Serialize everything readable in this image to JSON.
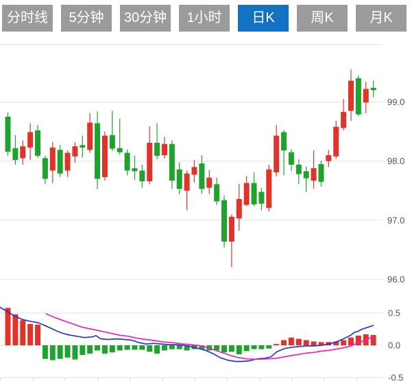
{
  "tabs": {
    "items": [
      {
        "label": "分时线",
        "active": false
      },
      {
        "label": "5分钟",
        "active": false
      },
      {
        "label": "30分钟",
        "active": false
      },
      {
        "label": "1小时",
        "active": false
      },
      {
        "label": "日K",
        "active": true
      },
      {
        "label": "周K",
        "active": false
      },
      {
        "label": "月K",
        "active": false
      }
    ]
  },
  "colors": {
    "up_candle": "#e0342b",
    "down_candle": "#1fa22e",
    "dif_line": "#2b35c9",
    "dea_line": "#ee1fc5",
    "tab_bg": "#9b9b9b",
    "tab_active_bg": "#1472c4",
    "grid": "#e2e2e2",
    "axis_text": "#555555"
  },
  "chart_data": {
    "type": "candlestick_with_macd",
    "panes": [
      "price_kline",
      "macd_indicator"
    ],
    "selected_timeframe": "日K",
    "price_axis": {
      "labels": [
        "99.0",
        "98.0",
        "97.0",
        "96.0"
      ],
      "values": [
        99.0,
        98.0,
        97.0,
        96.0
      ],
      "range": [
        95.9,
        100.0
      ]
    },
    "macd_axis": {
      "labels": [
        "0.5",
        "0.0",
        "-0.5"
      ],
      "values": [
        0.5,
        0.0,
        -0.5
      ],
      "range": [
        -0.5,
        0.5
      ]
    },
    "grid": "horizontal-only",
    "legend": "none",
    "candles": [
      {
        "o": 98.75,
        "h": 98.82,
        "l": 98.09,
        "c": 98.16
      },
      {
        "o": 98.22,
        "h": 98.44,
        "l": 97.94,
        "c": 98.02
      },
      {
        "o": 98.05,
        "h": 98.35,
        "l": 97.94,
        "c": 98.25
      },
      {
        "o": 98.23,
        "h": 98.64,
        "l": 98.02,
        "c": 98.49
      },
      {
        "o": 98.52,
        "h": 98.61,
        "l": 98.06,
        "c": 98.09
      },
      {
        "o": 98.05,
        "h": 98.09,
        "l": 97.61,
        "c": 97.7
      },
      {
        "o": 97.84,
        "h": 98.32,
        "l": 97.63,
        "c": 98.23
      },
      {
        "o": 98.19,
        "h": 98.27,
        "l": 97.73,
        "c": 97.79
      },
      {
        "o": 97.84,
        "h": 98.18,
        "l": 97.73,
        "c": 98.14
      },
      {
        "o": 98.08,
        "h": 98.32,
        "l": 97.97,
        "c": 98.25
      },
      {
        "o": 98.27,
        "h": 98.43,
        "l": 98.06,
        "c": 98.23
      },
      {
        "o": 98.19,
        "h": 98.81,
        "l": 98.14,
        "c": 98.65
      },
      {
        "o": 98.64,
        "h": 98.84,
        "l": 97.53,
        "c": 97.7
      },
      {
        "o": 97.73,
        "h": 98.5,
        "l": 97.67,
        "c": 98.43
      },
      {
        "o": 98.44,
        "h": 98.85,
        "l": 98.17,
        "c": 98.21
      },
      {
        "o": 98.22,
        "h": 98.72,
        "l": 98.11,
        "c": 98.15
      },
      {
        "o": 98.14,
        "h": 98.2,
        "l": 97.76,
        "c": 97.84
      },
      {
        "o": 97.88,
        "h": 98.09,
        "l": 97.68,
        "c": 97.83
      },
      {
        "o": 97.84,
        "h": 97.94,
        "l": 97.55,
        "c": 97.66
      },
      {
        "o": 97.66,
        "h": 98.59,
        "l": 97.61,
        "c": 98.31
      },
      {
        "o": 98.31,
        "h": 98.64,
        "l": 98.03,
        "c": 98.09
      },
      {
        "o": 98.1,
        "h": 98.41,
        "l": 98.04,
        "c": 98.29
      },
      {
        "o": 98.29,
        "h": 98.35,
        "l": 97.53,
        "c": 97.67
      },
      {
        "o": 97.86,
        "h": 97.98,
        "l": 97.44,
        "c": 97.53
      },
      {
        "o": 97.5,
        "h": 97.84,
        "l": 97.17,
        "c": 97.79
      },
      {
        "o": 97.77,
        "h": 98.02,
        "l": 97.64,
        "c": 97.9
      },
      {
        "o": 97.96,
        "h": 98.1,
        "l": 97.45,
        "c": 97.53
      },
      {
        "o": 97.55,
        "h": 97.85,
        "l": 97.45,
        "c": 97.72
      },
      {
        "o": 97.61,
        "h": 97.72,
        "l": 97.26,
        "c": 97.32
      },
      {
        "o": 97.34,
        "h": 97.42,
        "l": 96.54,
        "c": 96.64
      },
      {
        "o": 96.64,
        "h": 97.1,
        "l": 96.21,
        "c": 97.06
      },
      {
        "o": 97.03,
        "h": 97.61,
        "l": 96.82,
        "c": 97.36
      },
      {
        "o": 97.26,
        "h": 97.75,
        "l": 97.24,
        "c": 97.63
      },
      {
        "o": 97.63,
        "h": 97.81,
        "l": 97.24,
        "c": 97.27
      },
      {
        "o": 97.48,
        "h": 97.55,
        "l": 97.17,
        "c": 97.28
      },
      {
        "o": 97.21,
        "h": 97.94,
        "l": 97.15,
        "c": 97.86
      },
      {
        "o": 97.81,
        "h": 98.61,
        "l": 97.74,
        "c": 98.43
      },
      {
        "o": 98.49,
        "h": 98.53,
        "l": 97.76,
        "c": 98.18
      },
      {
        "o": 98.15,
        "h": 98.2,
        "l": 97.83,
        "c": 97.94
      },
      {
        "o": 97.94,
        "h": 98.03,
        "l": 97.61,
        "c": 97.78
      },
      {
        "o": 97.83,
        "h": 97.91,
        "l": 97.48,
        "c": 97.71
      },
      {
        "o": 97.67,
        "h": 98.18,
        "l": 97.53,
        "c": 97.88
      },
      {
        "o": 97.95,
        "h": 98.01,
        "l": 97.57,
        "c": 97.65
      },
      {
        "o": 98.0,
        "h": 98.19,
        "l": 97.9,
        "c": 98.1
      },
      {
        "o": 98.08,
        "h": 98.68,
        "l": 98.04,
        "c": 98.58
      },
      {
        "o": 98.56,
        "h": 99.05,
        "l": 98.52,
        "c": 98.83
      },
      {
        "o": 98.85,
        "h": 99.55,
        "l": 98.68,
        "c": 99.36
      },
      {
        "o": 99.4,
        "h": 99.45,
        "l": 98.76,
        "c": 98.79
      },
      {
        "o": 98.99,
        "h": 99.34,
        "l": 98.81,
        "c": 99.22
      },
      {
        "o": 99.24,
        "h": 99.36,
        "l": 99.08,
        "c": 99.2
      }
    ],
    "macd_histogram": [
      0.58,
      0.48,
      0.39,
      0.33,
      0.32,
      -0.21,
      -0.23,
      -0.21,
      -0.19,
      -0.22,
      -0.15,
      -0.13,
      -0.08,
      -0.13,
      -0.11,
      -0.08,
      -0.07,
      -0.07,
      -0.07,
      -0.1,
      -0.13,
      -0.08,
      -0.06,
      -0.06,
      -0.08,
      -0.06,
      -0.06,
      -0.08,
      -0.08,
      -0.11,
      -0.1,
      -0.14,
      -0.09,
      -0.06,
      -0.06,
      -0.05,
      0.02,
      0.08,
      0.12,
      0.1,
      0.08,
      0.06,
      0.05,
      0.05,
      0.06,
      0.08,
      0.12,
      0.15,
      0.17,
      0.16
    ],
    "dif_line_points": [
      [
        0,
        0.59
      ],
      [
        11,
        0.52
      ],
      [
        22,
        0.45
      ],
      [
        33,
        0.4
      ],
      [
        45,
        0.37
      ],
      [
        56,
        0.35
      ],
      [
        67,
        0.3
      ],
      [
        79,
        0.24
      ],
      [
        90,
        0.19
      ],
      [
        101,
        0.16
      ],
      [
        112,
        0.14
      ],
      [
        123,
        0.12
      ],
      [
        134,
        0.13
      ],
      [
        140,
        0.15
      ],
      [
        147,
        0.1
      ],
      [
        158,
        0.09
      ],
      [
        170,
        0.1
      ],
      [
        181,
        0.09
      ],
      [
        192,
        0.08
      ],
      [
        203,
        0.04
      ],
      [
        213,
        0.02
      ],
      [
        224,
        0.03
      ],
      [
        235,
        0.02
      ],
      [
        246,
        0.01
      ],
      [
        257,
        0.01
      ],
      [
        268,
        0.0
      ],
      [
        279,
        -0.02
      ],
      [
        290,
        -0.05
      ],
      [
        300,
        -0.08
      ],
      [
        311,
        -0.13
      ],
      [
        321,
        -0.19
      ],
      [
        332,
        -0.23
      ],
      [
        343,
        -0.25
      ],
      [
        354,
        -0.25
      ],
      [
        364,
        -0.24
      ],
      [
        375,
        -0.21
      ],
      [
        386,
        -0.2
      ],
      [
        395,
        -0.18
      ],
      [
        404,
        -0.1
      ],
      [
        415,
        -0.05
      ],
      [
        426,
        -0.03
      ],
      [
        436,
        -0.02
      ],
      [
        447,
        -0.01
      ],
      [
        458,
        -0.01
      ],
      [
        469,
        0.0
      ],
      [
        480,
        0.02
      ],
      [
        490,
        0.05
      ],
      [
        501,
        0.1
      ],
      [
        512,
        0.16
      ],
      [
        517,
        0.2
      ],
      [
        523,
        0.22
      ],
      [
        528,
        0.25
      ],
      [
        534,
        0.27
      ],
      [
        540,
        0.29
      ],
      [
        545,
        0.31
      ]
    ],
    "dea_line_points": [
      [
        67,
        0.49
      ],
      [
        80,
        0.43
      ],
      [
        93,
        0.38
      ],
      [
        107,
        0.33
      ],
      [
        120,
        0.28
      ],
      [
        134,
        0.25
      ],
      [
        147,
        0.22
      ],
      [
        160,
        0.19
      ],
      [
        173,
        0.16
      ],
      [
        187,
        0.14
      ],
      [
        200,
        0.11
      ],
      [
        213,
        0.09
      ],
      [
        227,
        0.07
      ],
      [
        240,
        0.05
      ],
      [
        253,
        0.04
      ],
      [
        267,
        0.02
      ],
      [
        280,
        0.01
      ],
      [
        293,
        -0.01
      ],
      [
        304,
        -0.04
      ],
      [
        315,
        -0.08
      ],
      [
        326,
        -0.12
      ],
      [
        337,
        -0.16
      ],
      [
        348,
        -0.19
      ],
      [
        359,
        -0.21
      ],
      [
        370,
        -0.215
      ],
      [
        381,
        -0.215
      ],
      [
        392,
        -0.21
      ],
      [
        403,
        -0.2
      ],
      [
        414,
        -0.18
      ],
      [
        425,
        -0.16
      ],
      [
        436,
        -0.14
      ],
      [
        447,
        -0.12
      ],
      [
        458,
        -0.11
      ],
      [
        468,
        -0.09
      ],
      [
        479,
        -0.08
      ],
      [
        490,
        -0.06
      ],
      [
        501,
        -0.04
      ],
      [
        512,
        -0.01
      ],
      [
        523,
        0.04
      ],
      [
        533,
        0.08
      ],
      [
        545,
        0.14
      ]
    ]
  }
}
